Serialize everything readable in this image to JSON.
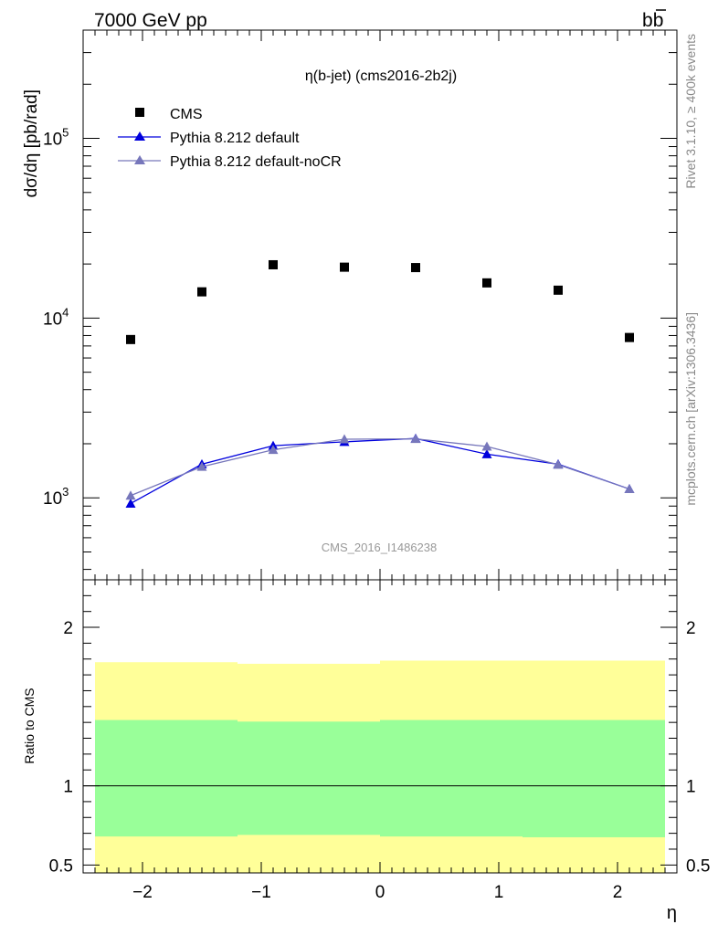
{
  "header": {
    "left": "7000 GeV pp",
    "right_base": "b",
    "right_bar": "b"
  },
  "side": {
    "top_text": "Rivet 3.1.10, ≥ 400k events",
    "bottom_text": "mcplots.cern.ch [arXiv:1306.3436]"
  },
  "chart_data": [
    {
      "type": "scatter",
      "title": "η(b-jet) (cms2016-2b2j)",
      "watermark": "CMS_2016_I1486238",
      "xlabel": "η",
      "ylabel": "dσ/dη [pb/rad]",
      "yscale": "log",
      "xlim": [
        -2.5,
        2.5
      ],
      "ylim": [
        350,
        400000
      ],
      "xticks": [
        -2,
        -1,
        0,
        1,
        2
      ],
      "xtick_labels": [
        "−2",
        "−1",
        "0",
        "1",
        "2"
      ],
      "yticks": [
        1000,
        10000,
        100000
      ],
      "ytick_labels": [
        {
          "base": "10",
          "exp": "3"
        },
        {
          "base": "10",
          "exp": "4"
        },
        {
          "base": "10",
          "exp": "5"
        }
      ],
      "legend_position": "top-left",
      "series": [
        {
          "name": "CMS",
          "marker": "square",
          "color": "#000000",
          "x": [
            -2.1,
            -1.5,
            -0.9,
            -0.3,
            0.3,
            0.9,
            1.5,
            2.1
          ],
          "y": [
            7600,
            14000,
            19800,
            19200,
            19100,
            15700,
            14300,
            7800
          ]
        },
        {
          "name": "Pythia 8.212 default",
          "marker": "triangle",
          "color": "#0000dd",
          "x": [
            -2.1,
            -1.5,
            -0.9,
            -0.3,
            0.3,
            0.9,
            1.5,
            2.1
          ],
          "y": [
            930,
            1540,
            1950,
            2050,
            2140,
            1750,
            1540,
            1120
          ],
          "yerr": [
            40,
            50,
            40,
            40,
            40,
            40,
            40,
            40
          ]
        },
        {
          "name": "Pythia 8.212 default-noCR",
          "marker": "triangle",
          "color": "#7777bb",
          "x": [
            -2.1,
            -1.5,
            -0.9,
            -0.3,
            0.3,
            0.9,
            1.5,
            2.1
          ],
          "y": [
            1030,
            1490,
            1850,
            2120,
            2130,
            1930,
            1530,
            1120
          ],
          "yerr": [
            40,
            40,
            40,
            40,
            40,
            40,
            40,
            40
          ]
        }
      ]
    },
    {
      "type": "area",
      "ylabel": "Ratio to CMS",
      "xlabel": "η",
      "xlim": [
        -2.5,
        2.5
      ],
      "ylim": [
        0.45,
        2.3
      ],
      "yticks": [
        0.5,
        1,
        2
      ],
      "ytick_labels": [
        "0.5",
        "1",
        "2"
      ],
      "reference_line": 1,
      "bands": [
        {
          "name": "outer",
          "color": "#ffff99",
          "segments": [
            {
              "x": [
                -2.4,
                -1.2
              ],
              "lo": 0.45,
              "hi": 1.78
            },
            {
              "x": [
                -1.2,
                0.0
              ],
              "lo": 0.45,
              "hi": 1.77
            },
            {
              "x": [
                0.0,
                2.4
              ],
              "lo": 0.45,
              "hi": 1.79
            }
          ]
        },
        {
          "name": "inner",
          "color": "#99ff99",
          "segments": [
            {
              "x": [
                -2.4,
                -1.2
              ],
              "lo": 0.68,
              "hi": 1.415
            },
            {
              "x": [
                -1.2,
                0.0
              ],
              "lo": 0.69,
              "hi": 1.405
            },
            {
              "x": [
                0.0,
                1.2
              ],
              "lo": 0.68,
              "hi": 1.415
            },
            {
              "x": [
                1.2,
                2.4
              ],
              "lo": 0.675,
              "hi": 1.415
            }
          ]
        }
      ]
    }
  ]
}
